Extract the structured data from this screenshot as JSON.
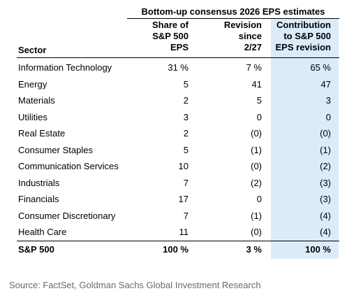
{
  "group_title": "Bottom-up consensus 2026 EPS estimates",
  "columns": {
    "sector": "Sector",
    "share": [
      "Share of",
      "S&P 500",
      "EPS"
    ],
    "revision": [
      "Revision",
      "since",
      "2/27"
    ],
    "contribution": [
      "Contribution",
      "to S&P 500",
      "EPS revision"
    ]
  },
  "rows": [
    {
      "sector": "Information Technology",
      "share": "31 %",
      "revision": "7 %",
      "contribution": "65 %"
    },
    {
      "sector": "Energy",
      "share": "5",
      "revision": "41",
      "contribution": "47"
    },
    {
      "sector": "Materials",
      "share": "2",
      "revision": "5",
      "contribution": "3"
    },
    {
      "sector": "Utilities",
      "share": "3",
      "revision": "0",
      "contribution": "0"
    },
    {
      "sector": "Real Estate",
      "share": "2",
      "revision": "(0)",
      "contribution": "(0)"
    },
    {
      "sector": "Consumer Staples",
      "share": "5",
      "revision": "(1)",
      "contribution": "(1)"
    },
    {
      "sector": "Communication Services",
      "share": "10",
      "revision": "(0)",
      "contribution": "(2)"
    },
    {
      "sector": "Industrials",
      "share": "7",
      "revision": "(2)",
      "contribution": "(3)"
    },
    {
      "sector": "Financials",
      "share": "17",
      "revision": "0",
      "contribution": "(3)"
    },
    {
      "sector": "Consumer Discretionary",
      "share": "7",
      "revision": "(1)",
      "contribution": "(4)"
    },
    {
      "sector": "Health Care",
      "share": "11",
      "revision": "(0)",
      "contribution": "(4)"
    }
  ],
  "total": {
    "sector": "S&P 500",
    "share": "100 %",
    "revision": "3 %",
    "contribution": "100 %"
  },
  "source": "Source: FactSet, Goldman Sachs Global Investment Research",
  "colors": {
    "highlight": "#dcebfa",
    "source_text": "#6b6b6b"
  }
}
